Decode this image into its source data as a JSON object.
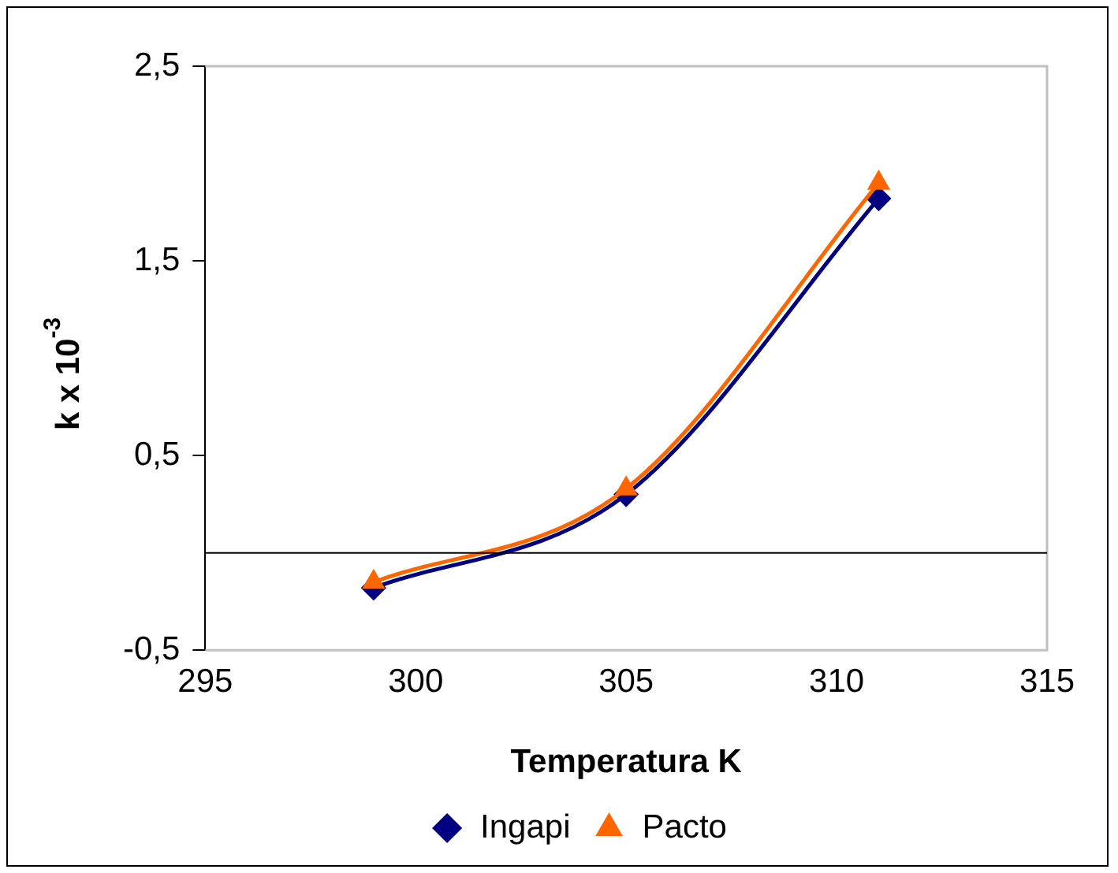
{
  "chart_data": {
    "type": "line",
    "xlabel": "Temperatura K",
    "ylabel": "k x 10$^{-3}$",
    "x": [
      299,
      305,
      311
    ],
    "series": [
      {
        "name": "Ingapi",
        "color": "#000080",
        "marker": "diamond",
        "values": [
          -0.18,
          0.3,
          1.82
        ]
      },
      {
        "name": "Pacto",
        "color": "#ff6600",
        "marker": "triangle",
        "values": [
          -0.15,
          0.33,
          1.9
        ]
      }
    ],
    "xlim": [
      295,
      315
    ],
    "xticks": [
      295,
      300,
      305,
      310,
      315
    ],
    "ylim": [
      -0.5,
      2.5
    ],
    "yticks": [
      {
        "value": -0.5,
        "label": "-0,5"
      },
      {
        "value": 0.5,
        "label": "0,5"
      },
      {
        "value": 1.5,
        "label": "1,5"
      },
      {
        "value": 2.5,
        "label": "2,5"
      }
    ],
    "ref_lines": [
      {
        "axis": "y",
        "value": 0,
        "color": "#000000"
      }
    ],
    "grid": false,
    "legend": "bottom",
    "line_style": "solid"
  }
}
